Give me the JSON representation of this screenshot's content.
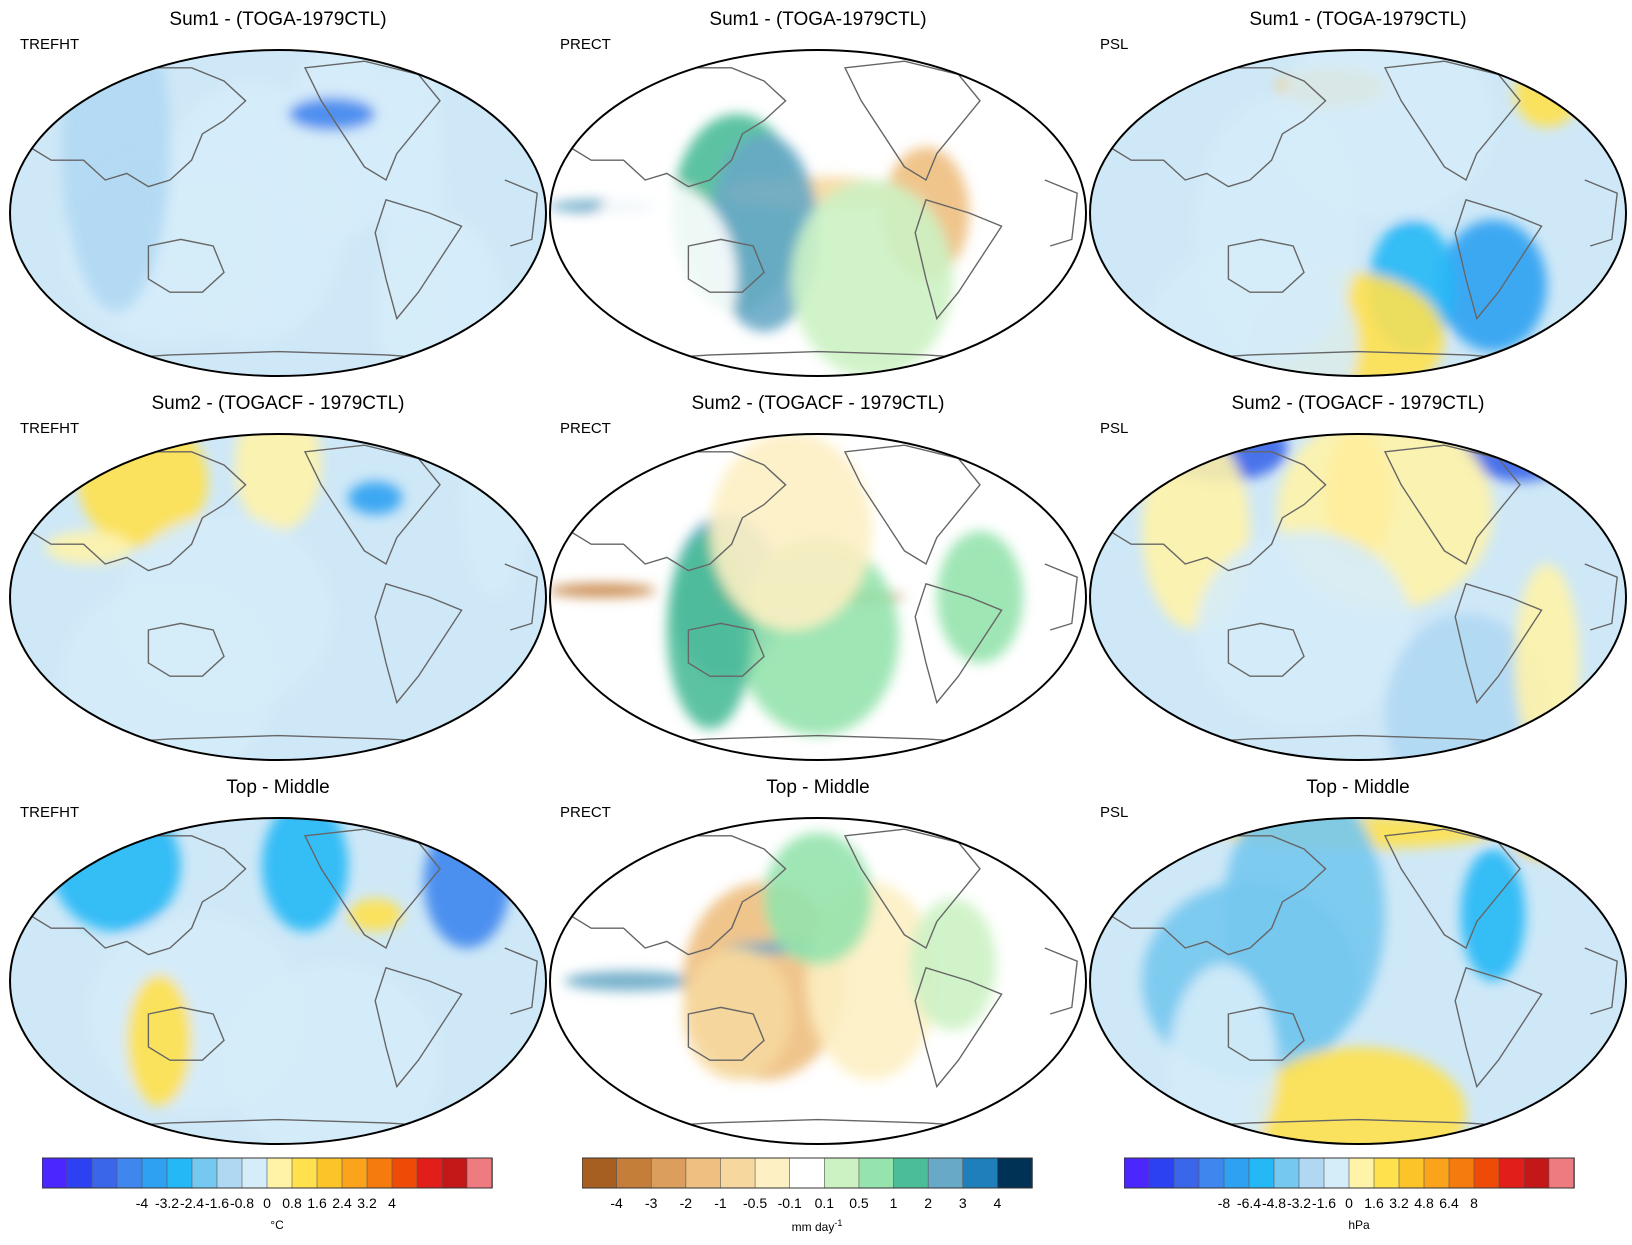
{
  "panels": [
    {
      "title": "Sum1 - (TOGA-1979CTL)",
      "var": "TREFHT",
      "palette": "temp",
      "blobs": [
        [
          0.38,
          0.35,
          0.08,
          0.05,
          0.2,
          8
        ],
        [
          0.62,
          0.28,
          0.11,
          0.3,
          0.1,
          8
        ],
        [
          0.45,
          0.5,
          0.18,
          0.4,
          0.1,
          8
        ],
        [
          0.3,
          0.6,
          0.2,
          0.3,
          0.2,
          8
        ],
        [
          0.75,
          0.55,
          0.06,
          0.7,
          0.05,
          8
        ],
        [
          0.6,
          0.2,
          0.08,
          0.05,
          0.5,
          3
        ],
        [
          0.2,
          0.3,
          0.1,
          0.5,
          0.1,
          7
        ],
        [
          0.8,
          0.8,
          0.12,
          0.3,
          0.1,
          8
        ]
      ]
    },
    {
      "title": "Sum1 - (TOGA-1979CTL)",
      "var": "PRECT",
      "palette": "precip",
      "blobs": [
        [
          0.35,
          0.5,
          0.12,
          0.3,
          0.2,
          9
        ],
        [
          0.1,
          0.48,
          0.1,
          0.02,
          0.25,
          10
        ],
        [
          0.5,
          0.44,
          0.18,
          0.05,
          0.1,
          4
        ],
        [
          0.4,
          0.56,
          0.1,
          0.3,
          0.2,
          10
        ],
        [
          0.7,
          0.5,
          0.08,
          0.2,
          0.2,
          3
        ],
        [
          0.6,
          0.7,
          0.15,
          0.3,
          0.15,
          7
        ],
        [
          0.2,
          0.7,
          0.15,
          0.3,
          0.15,
          6
        ]
      ]
    },
    {
      "title": "Sum1 - (TOGA-1979CTL)",
      "var": "PSL",
      "palette": "temp",
      "blobs": [
        [
          0.45,
          0.12,
          0.1,
          0.06,
          0.3,
          11
        ],
        [
          0.55,
          0.22,
          0.2,
          0.3,
          0.1,
          8
        ],
        [
          0.85,
          0.14,
          0.06,
          0.1,
          0.3,
          10
        ],
        [
          0.75,
          0.72,
          0.1,
          0.2,
          0.2,
          4
        ],
        [
          0.6,
          0.72,
          0.08,
          0.2,
          0.2,
          5
        ],
        [
          0.48,
          0.88,
          0.18,
          0.2,
          0.2,
          10
        ],
        [
          0.3,
          0.9,
          0.2,
          0.3,
          0.1,
          8
        ],
        [
          0.35,
          0.55,
          0.15,
          0.4,
          0.1,
          8
        ]
      ]
    },
    {
      "title": "Sum2 - (TOGACF - 1979CTL)",
      "var": "TREFHT",
      "palette": "temp",
      "blobs": [
        [
          0.25,
          0.15,
          0.12,
          0.2,
          0.3,
          10
        ],
        [
          0.5,
          0.1,
          0.08,
          0.2,
          0.3,
          9
        ],
        [
          0.68,
          0.2,
          0.05,
          0.05,
          0.4,
          4
        ],
        [
          0.9,
          0.2,
          0.06,
          0.3,
          0.2,
          8
        ],
        [
          0.4,
          0.55,
          0.2,
          0.3,
          0.1,
          8
        ],
        [
          0.3,
          0.75,
          0.2,
          0.3,
          0.1,
          8
        ],
        [
          0.15,
          0.35,
          0.08,
          0.05,
          0.2,
          9
        ]
      ]
    },
    {
      "title": "Sum2 - (TOGACF - 1979CTL)",
      "var": "PRECT",
      "palette": "precip",
      "blobs": [
        [
          0.33,
          0.5,
          0.1,
          0.25,
          0.2,
          10
        ],
        [
          0.48,
          0.5,
          0.18,
          0.02,
          0.04,
          1
        ],
        [
          0.1,
          0.48,
          0.1,
          0.02,
          0.05,
          1
        ],
        [
          0.5,
          0.62,
          0.15,
          0.3,
          0.15,
          8
        ],
        [
          0.3,
          0.6,
          0.08,
          0.3,
          0.2,
          9
        ],
        [
          0.8,
          0.5,
          0.08,
          0.2,
          0.2,
          8
        ],
        [
          0.45,
          0.3,
          0.15,
          0.3,
          0.2,
          5
        ]
      ]
    },
    {
      "title": "Sum2 - (TOGACF - 1979CTL)",
      "var": "PSL",
      "palette": "temp",
      "blobs": [
        [
          0.25,
          0.05,
          0.12,
          0.1,
          0.2,
          2
        ],
        [
          0.8,
          0.05,
          0.1,
          0.1,
          0.2,
          2
        ],
        [
          0.5,
          0.2,
          0.06,
          0.2,
          0.2,
          11
        ],
        [
          0.55,
          0.24,
          0.2,
          0.3,
          0.1,
          9
        ],
        [
          0.2,
          0.3,
          0.1,
          0.3,
          0.2,
          9
        ],
        [
          0.4,
          0.6,
          0.2,
          0.3,
          0.1,
          8
        ],
        [
          0.7,
          0.85,
          0.15,
          0.3,
          0.2,
          7
        ],
        [
          0.85,
          0.7,
          0.06,
          0.3,
          0.2,
          9
        ]
      ]
    },
    {
      "title": "Top - Middle",
      "var": "TREFHT",
      "palette": "temp",
      "blobs": [
        [
          0.2,
          0.15,
          0.12,
          0.2,
          0.3,
          5
        ],
        [
          0.55,
          0.15,
          0.08,
          0.2,
          0.3,
          5
        ],
        [
          0.68,
          0.3,
          0.05,
          0.05,
          0.4,
          10
        ],
        [
          0.35,
          0.6,
          0.2,
          0.3,
          0.1,
          8
        ],
        [
          0.28,
          0.68,
          0.06,
          0.2,
          0.2,
          10
        ],
        [
          0.6,
          0.75,
          0.2,
          0.3,
          0.1,
          8
        ],
        [
          0.85,
          0.2,
          0.08,
          0.2,
          0.2,
          3
        ]
      ]
    },
    {
      "title": "Top - Middle",
      "var": "PRECT",
      "palette": "precip",
      "blobs": [
        [
          0.15,
          0.5,
          0.12,
          0.03,
          0.25,
          10
        ],
        [
          0.4,
          0.5,
          0.15,
          0.3,
          0.2,
          3
        ],
        [
          0.45,
          0.4,
          0.12,
          0.02,
          0.1,
          10
        ],
        [
          0.35,
          0.6,
          0.1,
          0.2,
          0.2,
          4
        ],
        [
          0.6,
          0.5,
          0.12,
          0.3,
          0.2,
          5
        ],
        [
          0.75,
          0.45,
          0.08,
          0.2,
          0.2,
          7
        ],
        [
          0.5,
          0.25,
          0.1,
          0.2,
          0.2,
          8
        ]
      ]
    },
    {
      "title": "Top - Middle",
      "var": "PSL",
      "palette": "temp",
      "blobs": [
        [
          0.5,
          0.05,
          0.25,
          0.05,
          0.15,
          10
        ],
        [
          0.85,
          0.08,
          0.06,
          0.05,
          0.3,
          11
        ],
        [
          0.4,
          0.3,
          0.15,
          0.4,
          0.1,
          6
        ],
        [
          0.3,
          0.5,
          0.2,
          0.3,
          0.1,
          6
        ],
        [
          0.5,
          0.9,
          0.2,
          0.2,
          0.2,
          10
        ],
        [
          0.25,
          0.75,
          0.1,
          0.3,
          0.2,
          8
        ],
        [
          0.75,
          0.3,
          0.06,
          0.2,
          0.2,
          5
        ]
      ]
    }
  ],
  "colorbars": [
    {
      "unit": "°C",
      "colors": [
        "#4b26ff",
        "#2c42f2",
        "#3a66ea",
        "#3f86ee",
        "#2ea1f2",
        "#25b8f6",
        "#75c8f0",
        "#b0d8f3",
        "#d5ecf9",
        "#fff3a8",
        "#ffe14d",
        "#fdc42a",
        "#fba31b",
        "#f57b0e",
        "#ef4b06",
        "#e21e1a",
        "#c41718",
        "#ee7b7f"
      ],
      "ticks": [
        "-4",
        "-3.2",
        "-2.4",
        "-1.6",
        "-0.8",
        "0",
        "0.8",
        "1.6",
        "2.4",
        "3.2",
        "4"
      ]
    },
    {
      "unit": "mm day",
      "unit_sup": "-1",
      "colors": [
        "#a65f21",
        "#c47e3a",
        "#db9e5c",
        "#eebf80",
        "#f6d89f",
        "#fdf0c3",
        "#ffffff",
        "#ccf2c4",
        "#95e3ad",
        "#4bbd98",
        "#68a9c7",
        "#1e7fba",
        "#003256"
      ],
      "ticks": [
        "-4",
        "-3",
        "-2",
        "-1",
        "-0.5",
        "-0.1",
        "0.1",
        "0.5",
        "1",
        "2",
        "3",
        "4"
      ]
    },
    {
      "unit": "hPa",
      "colors": [
        "#4b26ff",
        "#2c42f2",
        "#3a66ea",
        "#3f86ee",
        "#2ea1f2",
        "#25b8f6",
        "#75c8f0",
        "#b0d8f3",
        "#d5ecf9",
        "#fff3a8",
        "#ffe14d",
        "#fdc42a",
        "#fba31b",
        "#f57b0e",
        "#ef4b06",
        "#e21e1a",
        "#c41718",
        "#ee7b7f"
      ],
      "ticks": [
        "-8",
        "-6.4",
        "-4.8",
        "-3.2",
        "-1.6",
        "0",
        "1.6",
        "3.2",
        "4.8",
        "6.4",
        "8"
      ]
    }
  ]
}
